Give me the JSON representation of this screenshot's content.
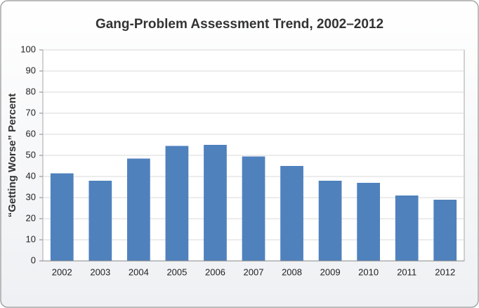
{
  "chart_data": {
    "type": "bar",
    "title": "Gang-Problem Assessment Trend, 2002–2012",
    "y_label": "“Getting Worse” Percent",
    "categories": [
      "2002",
      "2003",
      "2004",
      "2005",
      "2006",
      "2007",
      "2008",
      "2009",
      "2010",
      "2011",
      "2012"
    ],
    "values": [
      41.5,
      38,
      48.5,
      54.5,
      55,
      49.5,
      45,
      38,
      37,
      31,
      29
    ],
    "color": "#4f81bd",
    "ylim": [
      0,
      100
    ],
    "yticks": [
      0,
      10,
      20,
      30,
      40,
      50,
      60,
      70,
      80,
      90,
      100
    ],
    "grid": true
  }
}
